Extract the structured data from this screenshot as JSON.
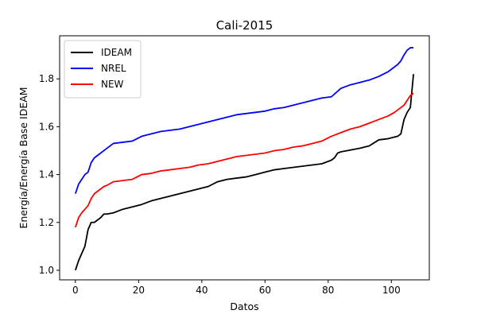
{
  "chart_data": {
    "type": "line",
    "title": "Cali-2015",
    "xlabel": "Datos",
    "ylabel": "Energía/Energía Base IDEAM",
    "xlim": [
      -5,
      112
    ],
    "ylim": [
      0.96,
      1.98
    ],
    "xticks": [
      0,
      20,
      40,
      60,
      80,
      100
    ],
    "yticks": [
      1.0,
      1.2,
      1.4,
      1.6,
      1.8
    ],
    "xtick_labels": [
      "0",
      "20",
      "40",
      "60",
      "80",
      "100"
    ],
    "ytick_labels": [
      "1.0",
      "1.2",
      "1.4",
      "1.6",
      "1.8"
    ],
    "grid": false,
    "legend_position": "top-left",
    "series": [
      {
        "name": "IDEAM",
        "color": "#000000",
        "x": [
          0,
          1,
          2,
          3,
          4,
          5,
          6,
          7,
          8,
          9,
          10,
          12,
          15,
          18,
          21,
          24,
          27,
          30,
          33,
          36,
          39,
          42,
          45,
          48,
          51,
          54,
          57,
          60,
          63,
          66,
          69,
          72,
          75,
          78,
          81,
          82,
          83,
          84,
          86,
          88,
          90,
          93,
          96,
          99,
          102,
          103,
          104,
          105,
          106,
          107
        ],
        "values": [
          1.0,
          1.04,
          1.07,
          1.1,
          1.17,
          1.2,
          1.2,
          1.21,
          1.22,
          1.235,
          1.235,
          1.24,
          1.255,
          1.265,
          1.275,
          1.29,
          1.3,
          1.31,
          1.32,
          1.33,
          1.34,
          1.35,
          1.37,
          1.38,
          1.385,
          1.39,
          1.4,
          1.41,
          1.42,
          1.425,
          1.43,
          1.435,
          1.44,
          1.445,
          1.46,
          1.47,
          1.49,
          1.495,
          1.5,
          1.505,
          1.51,
          1.52,
          1.545,
          1.55,
          1.56,
          1.57,
          1.63,
          1.66,
          1.68,
          1.82
        ]
      },
      {
        "name": "NREL",
        "color": "#0000ff",
        "x": [
          0,
          1,
          2,
          3,
          4,
          5,
          6,
          7,
          8,
          9,
          10,
          12,
          15,
          18,
          21,
          24,
          27,
          30,
          33,
          36,
          39,
          42,
          45,
          48,
          51,
          54,
          57,
          60,
          63,
          66,
          69,
          72,
          75,
          78,
          81,
          84,
          87,
          90,
          93,
          96,
          99,
          101,
          102,
          103,
          104,
          105,
          106,
          107
        ],
        "values": [
          1.32,
          1.36,
          1.38,
          1.4,
          1.41,
          1.45,
          1.47,
          1.48,
          1.49,
          1.5,
          1.51,
          1.53,
          1.535,
          1.54,
          1.56,
          1.57,
          1.58,
          1.585,
          1.59,
          1.6,
          1.61,
          1.62,
          1.63,
          1.64,
          1.65,
          1.655,
          1.66,
          1.665,
          1.675,
          1.68,
          1.69,
          1.7,
          1.71,
          1.72,
          1.725,
          1.76,
          1.775,
          1.785,
          1.795,
          1.81,
          1.83,
          1.85,
          1.86,
          1.875,
          1.9,
          1.92,
          1.93,
          1.93
        ]
      },
      {
        "name": "NEW",
        "color": "#ff0000",
        "x": [
          0,
          1,
          2,
          3,
          4,
          5,
          6,
          7,
          8,
          9,
          10,
          12,
          15,
          18,
          21,
          24,
          27,
          30,
          33,
          36,
          39,
          42,
          45,
          48,
          51,
          54,
          57,
          60,
          63,
          66,
          69,
          72,
          75,
          78,
          81,
          84,
          87,
          90,
          93,
          96,
          99,
          101,
          102,
          103,
          104,
          105,
          106,
          107
        ],
        "values": [
          1.18,
          1.22,
          1.24,
          1.255,
          1.27,
          1.3,
          1.32,
          1.33,
          1.34,
          1.35,
          1.355,
          1.37,
          1.375,
          1.38,
          1.4,
          1.405,
          1.415,
          1.42,
          1.425,
          1.43,
          1.44,
          1.445,
          1.455,
          1.465,
          1.475,
          1.48,
          1.485,
          1.49,
          1.5,
          1.505,
          1.515,
          1.52,
          1.53,
          1.54,
          1.56,
          1.575,
          1.59,
          1.6,
          1.615,
          1.63,
          1.645,
          1.66,
          1.67,
          1.68,
          1.69,
          1.71,
          1.73,
          1.74
        ]
      }
    ]
  }
}
